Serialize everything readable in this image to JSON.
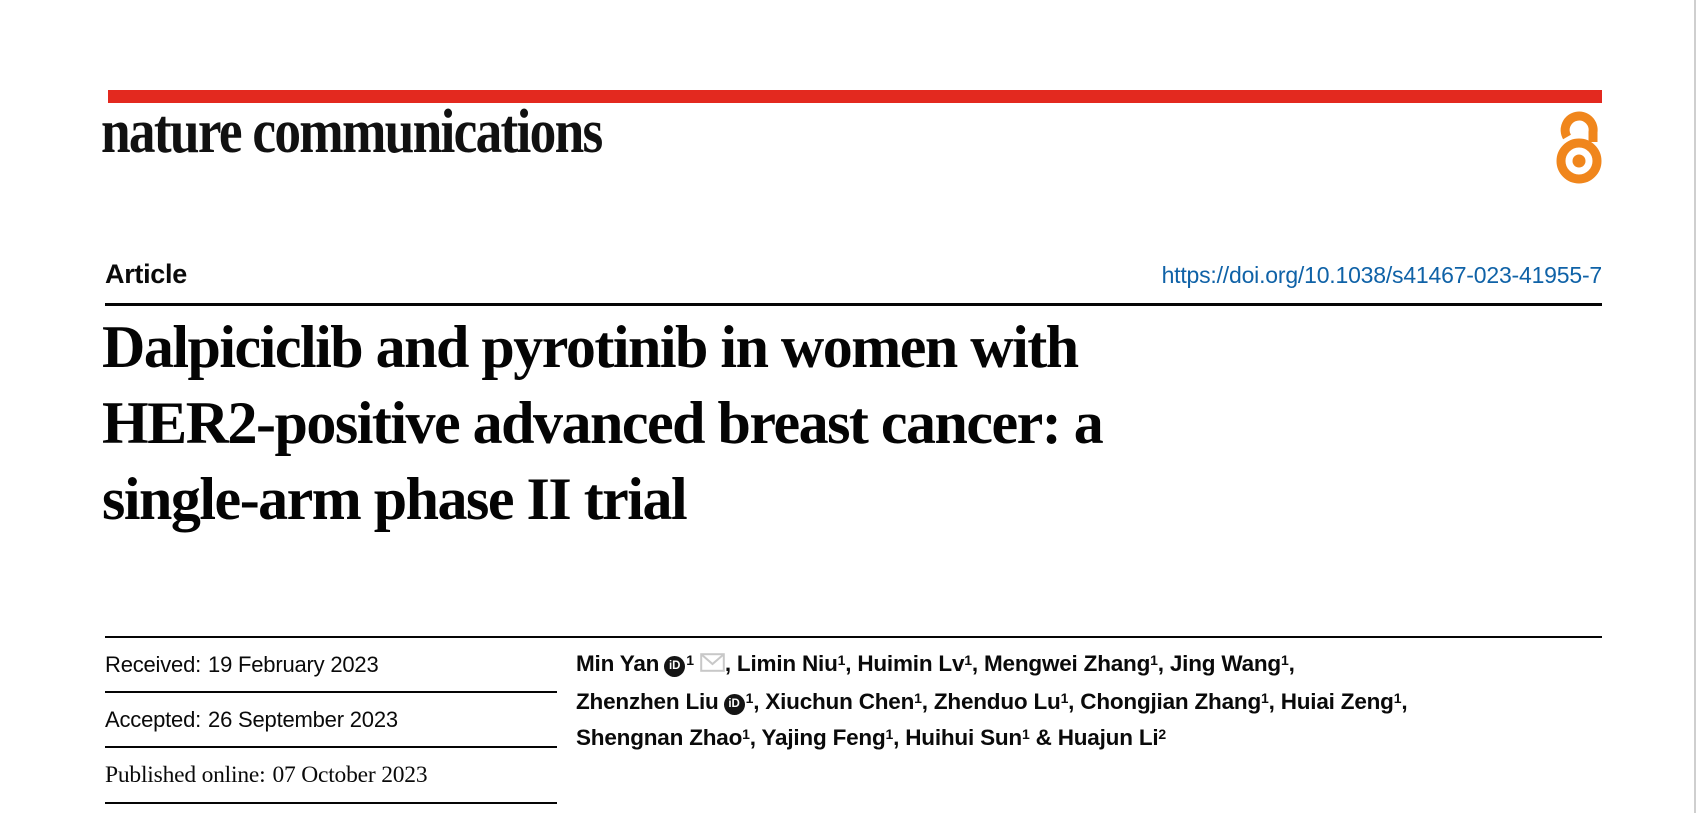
{
  "page": {
    "accent_red": "#e3291f",
    "link_blue": "#0f62a7",
    "oa_orange": "#f0861c",
    "icon_gray": "#c8c8c8"
  },
  "masthead": {
    "journal_name": "nature communications",
    "open_access_icon": "open-access-padlock-icon"
  },
  "article_bar": {
    "type_label": "Article",
    "doi": "https://doi.org/10.1038/s41467-023-41955-7"
  },
  "title_lines": [
    "Dalpiciclib and pyrotinib in women with",
    "HER2-positive advanced breast cancer: a",
    "single-arm phase II trial"
  ],
  "dates": {
    "rows": [
      {
        "label": "Received:",
        "value": "19 February 2023"
      },
      {
        "label": "Accepted:",
        "value": "26 September 2023"
      },
      {
        "label": "Published online:",
        "value": "07 October 2023"
      }
    ]
  },
  "authors": {
    "lines": [
      [
        {
          "name": "Min Yan",
          "orcid": true,
          "sup": "1",
          "email": true,
          "sep": ", "
        },
        {
          "name": "Limin Niu",
          "sup": "1",
          "sep": ", "
        },
        {
          "name": "Huimin Lv",
          "sup": "1",
          "sep": ", "
        },
        {
          "name": "Mengwei Zhang",
          "sup": "1",
          "sep": ", "
        },
        {
          "name": "Jing Wang",
          "sup": "1",
          "sep": ","
        }
      ],
      [
        {
          "name": "Zhenzhen Liu",
          "orcid": true,
          "sup": "1",
          "sep": ", "
        },
        {
          "name": "Xiuchun Chen",
          "sup": "1",
          "sep": ", "
        },
        {
          "name": "Zhenduo Lu",
          "sup": "1",
          "sep": ", "
        },
        {
          "name": "Chongjian Zhang",
          "sup": "1",
          "sep": ", "
        },
        {
          "name": "Huiai Zeng",
          "sup": "1",
          "sep": ","
        }
      ],
      [
        {
          "name": "Shengnan Zhao",
          "sup": "1",
          "sep": ", "
        },
        {
          "name": "Yajing Feng",
          "sup": "1",
          "sep": ", "
        },
        {
          "name": "Huihui Sun",
          "sup": "1",
          "sep": " & "
        },
        {
          "name": "Huajun Li",
          "sup": "2",
          "sep": ""
        }
      ]
    ]
  }
}
